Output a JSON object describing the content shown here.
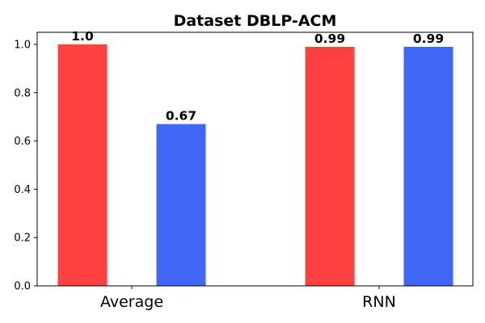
{
  "chart_data": {
    "type": "bar",
    "title": "Dataset DBLP-ACM",
    "xlabel": "",
    "ylabel": "",
    "categories": [
      "Average",
      "RNN"
    ],
    "series": [
      {
        "values": [
          1.0,
          0.99
        ],
        "labels": [
          "1.0",
          "0.99"
        ],
        "color": "#ff4040"
      },
      {
        "values": [
          0.67,
          0.99
        ],
        "labels": [
          "0.67",
          "0.99"
        ],
        "color": "#4066f7"
      }
    ],
    "ylim": [
      0,
      1.05
    ],
    "yticks": [
      0.0,
      0.2,
      0.4,
      0.6,
      0.8,
      1.0
    ],
    "ytick_labels": [
      "0.0",
      "0.2",
      "0.4",
      "0.6",
      "0.8",
      "1.0"
    ],
    "grid": false,
    "legend": "none"
  }
}
